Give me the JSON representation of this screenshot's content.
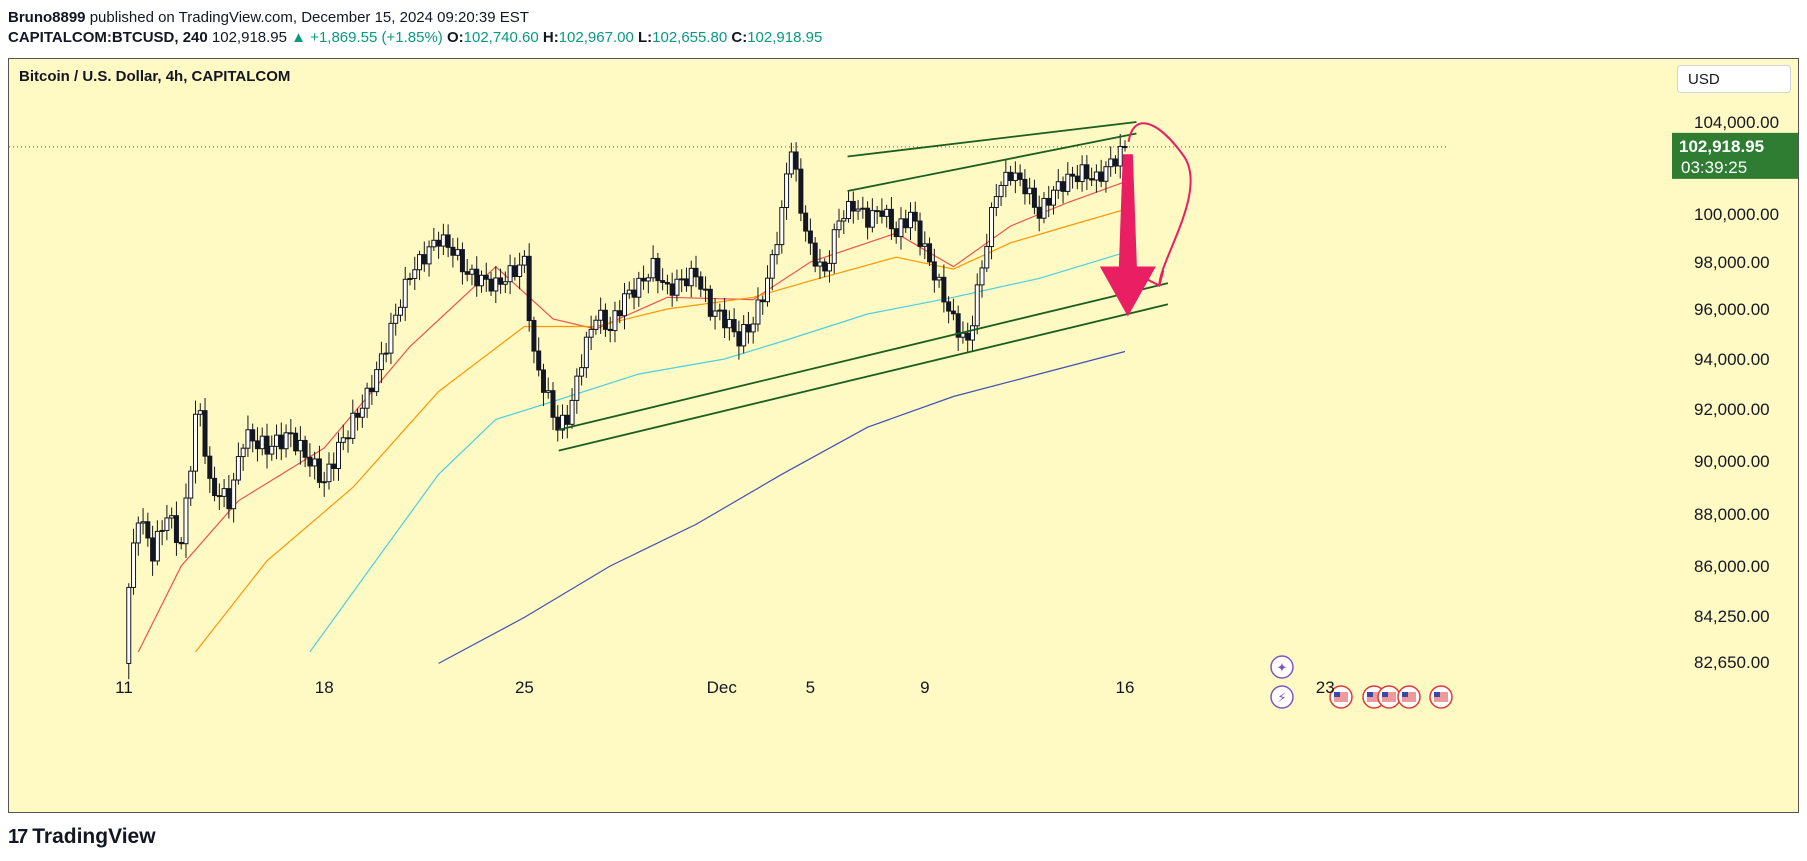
{
  "header": {
    "publisher": "Bruno8899",
    "published_text": "published on TradingView.com, December 15, 2024 09:20:39 EST",
    "symbol": "CAPITALCOM:BTCUSD, 240",
    "price": "102,918.95",
    "change": "+1,869.55 (+1.85%)",
    "o_label": "O:",
    "o": "102,740.60",
    "h_label": "H:",
    "h": "102,967.00",
    "l_label": "L:",
    "l": "102,655.80",
    "c_label": "C:",
    "c": "102,918.95"
  },
  "chart_title": "Bitcoin / U.S. Dollar, 4h, CAPITALCOM",
  "currency_button": "USD",
  "price_label": {
    "price": "102,918.95",
    "countdown": "03:39:25"
  },
  "footer": {
    "brand": "TradingView"
  },
  "colors": {
    "background": "#fff9c4",
    "up_candle": "#ffffff",
    "down_candle": "#131722",
    "trend": "#1b5e20",
    "arrow": "#e91e63",
    "price_tag": "#2e7d32"
  },
  "chart_data": {
    "type": "candlestick",
    "x_tick_labels": [
      "11",
      "18",
      "25",
      "Dec",
      "5",
      "9",
      "16",
      "23"
    ],
    "y_tick_labels": [
      "104,000.00",
      "100,000.00",
      "98,000.00",
      "96,000.00",
      "94,000.00",
      "92,000.00",
      "90,000.00",
      "88,000.00",
      "86,000.00",
      "84,250.00",
      "82,650.00"
    ],
    "ylim": [
      82000,
      105000
    ],
    "grid": false,
    "price_path": [
      [
        11,
        82600
      ],
      [
        11.1,
        84700
      ],
      [
        11.5,
        88000
      ],
      [
        12,
        86500
      ],
      [
        12.5,
        88000
      ],
      [
        13,
        86800
      ],
      [
        13.6,
        92500
      ],
      [
        14,
        89000
      ],
      [
        14.7,
        88500
      ],
      [
        15.2,
        91000
      ],
      [
        16,
        90500
      ],
      [
        16.8,
        91000
      ],
      [
        17.5,
        90000
      ],
      [
        18,
        89200
      ],
      [
        18.5,
        90500
      ],
      [
        19,
        91500
      ],
      [
        19.5,
        92500
      ],
      [
        20,
        94000
      ],
      [
        21,
        97500
      ],
      [
        22,
        99000
      ],
      [
        22.5,
        98500
      ],
      [
        23,
        97500
      ],
      [
        24,
        97000
      ],
      [
        25,
        98000
      ],
      [
        25.3,
        94200
      ],
      [
        25.8,
        92500
      ],
      [
        26.2,
        91200
      ],
      [
        26.6,
        91900
      ],
      [
        27,
        94000
      ],
      [
        27.5,
        95800
      ],
      [
        28,
        95200
      ],
      [
        28.5,
        96500
      ],
      [
        29,
        97000
      ],
      [
        29.5,
        97800
      ],
      [
        30,
        96800
      ],
      [
        30.5,
        97200
      ],
      [
        31,
        97500
      ],
      [
        31.5,
        96000
      ],
      [
        32,
        95600
      ],
      [
        32.5,
        94800
      ],
      [
        33,
        95500
      ],
      [
        33.5,
        97200
      ],
      [
        34,
        100000
      ],
      [
        34.3,
        103200
      ],
      [
        34.7,
        100000
      ],
      [
        35,
        98500
      ],
      [
        35.5,
        97500
      ],
      [
        36,
        99800
      ],
      [
        36.5,
        100400
      ],
      [
        37,
        99800
      ],
      [
        37.5,
        100200
      ],
      [
        38,
        99200
      ],
      [
        38.5,
        100000
      ],
      [
        39,
        98500
      ],
      [
        39.5,
        97000
      ],
      [
        40,
        95500
      ],
      [
        40.5,
        94600
      ],
      [
        41,
        97800
      ],
      [
        41.5,
        101000
      ],
      [
        42,
        101800
      ],
      [
        42.5,
        101200
      ],
      [
        43,
        100000
      ],
      [
        43.5,
        101000
      ],
      [
        44,
        101500
      ],
      [
        44.5,
        101800
      ],
      [
        45,
        101500
      ],
      [
        45.5,
        102200
      ],
      [
        46,
        102900
      ]
    ],
    "series": [
      {
        "color": "#ef5350",
        "points": [
          [
            11.5,
            83000
          ],
          [
            13,
            86000
          ],
          [
            15,
            88500
          ],
          [
            18,
            90500
          ],
          [
            21,
            94500
          ],
          [
            24,
            97800
          ],
          [
            26,
            95600
          ],
          [
            27.5,
            95200
          ],
          [
            30,
            96500
          ],
          [
            33,
            96400
          ],
          [
            35,
            98000
          ],
          [
            38,
            99200
          ],
          [
            40,
            97800
          ],
          [
            42,
            99500
          ],
          [
            44,
            100500
          ],
          [
            46,
            101400
          ]
        ]
      },
      {
        "color": "#ff9800",
        "points": [
          [
            13.5,
            83000
          ],
          [
            16,
            86200
          ],
          [
            19,
            89000
          ],
          [
            22,
            92700
          ],
          [
            25,
            95300
          ],
          [
            27.5,
            95300
          ],
          [
            30,
            96000
          ],
          [
            33,
            96500
          ],
          [
            35,
            97200
          ],
          [
            38,
            98200
          ],
          [
            40,
            97700
          ],
          [
            42,
            98800
          ],
          [
            44,
            99500
          ],
          [
            46,
            100200
          ]
        ]
      },
      {
        "color": "#4dd0e1",
        "points": [
          [
            17.5,
            83000
          ],
          [
            20,
            86500
          ],
          [
            22,
            89500
          ],
          [
            24,
            91600
          ],
          [
            26,
            92300
          ],
          [
            29,
            93400
          ],
          [
            32,
            94000
          ],
          [
            34,
            94700
          ],
          [
            37,
            95800
          ],
          [
            40,
            96500
          ],
          [
            43,
            97300
          ],
          [
            46,
            98400
          ]
        ]
      },
      {
        "color": "#3f51b5",
        "points": [
          [
            22,
            82600
          ],
          [
            25,
            84200
          ],
          [
            28,
            86000
          ],
          [
            31,
            87600
          ],
          [
            34,
            89500
          ],
          [
            37,
            91300
          ],
          [
            40,
            92500
          ],
          [
            43,
            93400
          ],
          [
            46,
            94300
          ]
        ]
      }
    ],
    "trend_lines": [
      {
        "from": [
          26.2,
          91200
        ],
        "to": [
          47.5,
          97100
        ]
      },
      {
        "from": [
          26.2,
          90400
        ],
        "to": [
          47.5,
          96200
        ]
      },
      {
        "from": [
          36.3,
          102500
        ],
        "to": [
          46.4,
          104000
        ]
      },
      {
        "from": [
          36.3,
          101000
        ],
        "to": [
          46.4,
          103500
        ]
      }
    ],
    "annotations": [
      {
        "type": "down-arrow",
        "from": [
          46.1,
          102600
        ],
        "to": [
          46.1,
          95700
        ]
      },
      {
        "type": "curved-arrow",
        "from": [
          46.3,
          103400
        ],
        "to": [
          47.2,
          97000
        ]
      }
    ],
    "current_price": 102918.95
  }
}
